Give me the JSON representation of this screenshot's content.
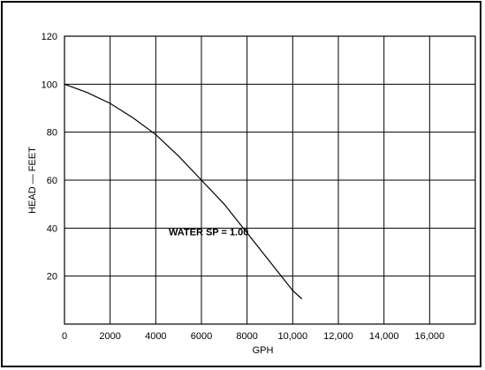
{
  "chart_data": {
    "type": "line",
    "title": "",
    "xlabel": "GPH",
    "ylabel": "HEAD — FEET",
    "xlim": [
      0,
      18000
    ],
    "ylim": [
      0,
      120
    ],
    "x_ticks": [
      0,
      2000,
      4000,
      6000,
      8000,
      10000,
      12000,
      14000,
      16000,
      18000
    ],
    "x_tick_labels": [
      "0",
      "2000",
      "4000",
      "6000",
      "8000",
      "10,000",
      "12,000",
      "14,000",
      "16,000",
      ""
    ],
    "y_ticks": [
      0,
      20,
      40,
      60,
      80,
      100,
      120
    ],
    "y_tick_labels": [
      "",
      "20",
      "40",
      "60",
      "80",
      "100",
      "120"
    ],
    "grid": true,
    "annotation": {
      "text": "WATER SP = 1.00",
      "x": 7200,
      "y": 37
    },
    "series": [
      {
        "color": "#000000",
        "x": [
          0,
          1000,
          2000,
          3000,
          4000,
          5000,
          6000,
          7000,
          8000,
          9000,
          10000,
          10400
        ],
        "y": [
          100,
          96.5,
          92,
          86,
          79,
          70,
          60,
          50,
          38,
          26,
          14,
          10.5
        ]
      }
    ]
  }
}
